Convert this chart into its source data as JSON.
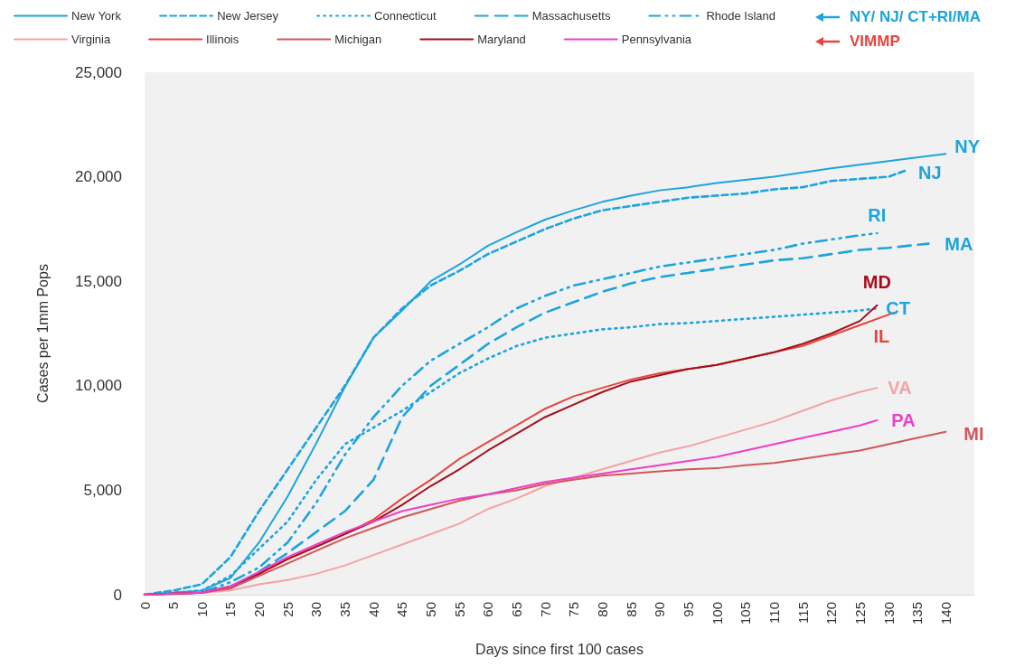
{
  "chart_data": {
    "type": "line",
    "xlabel": "Days since first 100 cases",
    "ylabel": "Cases per 1mm Pops",
    "xlim": [
      0,
      145
    ],
    "xticks": [
      0,
      5,
      10,
      15,
      20,
      25,
      30,
      35,
      40,
      45,
      50,
      55,
      60,
      65,
      70,
      75,
      80,
      85,
      90,
      95,
      100,
      105,
      110,
      115,
      120,
      125,
      130,
      135,
      140
    ],
    "ylim": [
      0,
      25000
    ],
    "yticks": [
      {
        "value": 0,
        "label": "0"
      },
      {
        "value": 5000,
        "label": "5,000"
      },
      {
        "value": 10000,
        "label": "10,000"
      },
      {
        "value": 15000,
        "label": "15,000"
      },
      {
        "value": 20000,
        "label": "20,000"
      },
      {
        "value": 25000,
        "label": "25,000"
      }
    ],
    "grid": false,
    "legend": "top",
    "series": [
      {
        "name": "New York",
        "color": "#1ca4de",
        "line_style": "solid",
        "x": [
          0,
          5,
          10,
          15,
          20,
          25,
          30,
          35,
          40,
          45,
          50,
          55,
          60,
          65,
          70,
          75,
          80,
          85,
          90,
          95,
          100,
          110,
          120,
          130,
          140
        ],
        "values": [
          0,
          100,
          200,
          800,
          2500,
          4700,
          7250,
          9950,
          12300,
          13600,
          15000,
          15800,
          16700,
          17350,
          17950,
          18400,
          18800,
          19100,
          19350,
          19500,
          19700,
          20000,
          20400,
          20750,
          21100
        ]
      },
      {
        "name": "New Jersey",
        "color": "#1ca4de",
        "line_style": "dashed",
        "x": [
          0,
          5,
          10,
          15,
          20,
          25,
          30,
          35,
          40,
          45,
          50,
          55,
          60,
          65,
          70,
          75,
          80,
          85,
          90,
          95,
          100,
          105,
          110,
          115,
          120,
          125,
          130,
          133
        ],
        "values": [
          0,
          200,
          500,
          1800,
          4000,
          6000,
          8000,
          10000,
          12300,
          13700,
          14800,
          15500,
          16300,
          16900,
          17500,
          18000,
          18400,
          18600,
          18800,
          19000,
          19100,
          19200,
          19400,
          19500,
          19800,
          19900,
          20000,
          20300
        ]
      },
      {
        "name": "Connecticut",
        "color": "#1ca4de",
        "line_style": "dotted",
        "x": [
          0,
          5,
          10,
          15,
          20,
          25,
          30,
          35,
          40,
          45,
          50,
          55,
          60,
          65,
          70,
          75,
          80,
          85,
          90,
          95,
          100,
          105,
          110,
          115,
          120,
          125,
          128
        ],
        "values": [
          0,
          100,
          200,
          900,
          2200,
          3500,
          5500,
          7200,
          8000,
          8800,
          9700,
          10600,
          11300,
          11900,
          12300,
          12500,
          12700,
          12800,
          12950,
          13000,
          13100,
          13200,
          13300,
          13400,
          13500,
          13600,
          13700
        ]
      },
      {
        "name": "Massachusetts",
        "color": "#1ca4de",
        "line_style": "longdash",
        "x": [
          0,
          5,
          10,
          15,
          20,
          25,
          30,
          35,
          40,
          45,
          50,
          55,
          60,
          65,
          70,
          75,
          80,
          85,
          90,
          95,
          100,
          105,
          110,
          115,
          120,
          125,
          130,
          137
        ],
        "values": [
          0,
          50,
          100,
          300,
          1100,
          2000,
          3000,
          4000,
          5500,
          8500,
          10000,
          11000,
          12000,
          12800,
          13500,
          14000,
          14500,
          14900,
          15200,
          15400,
          15600,
          15800,
          16000,
          16100,
          16300,
          16500,
          16600,
          16800
        ]
      },
      {
        "name": "Rhode Island",
        "color": "#1ca4de",
        "line_style": "dashdot",
        "x": [
          0,
          5,
          10,
          15,
          20,
          25,
          30,
          35,
          40,
          45,
          50,
          55,
          60,
          65,
          70,
          75,
          80,
          85,
          90,
          95,
          100,
          105,
          110,
          115,
          120,
          125,
          128
        ],
        "values": [
          0,
          50,
          100,
          600,
          1300,
          2500,
          4400,
          6700,
          8500,
          10000,
          11200,
          12000,
          12800,
          13700,
          14300,
          14800,
          15100,
          15400,
          15700,
          15900,
          16100,
          16300,
          16500,
          16800,
          17000,
          17200,
          17300
        ]
      },
      {
        "name": "Virginia",
        "color": "#f4a3a3",
        "line_style": "solid",
        "x": [
          0,
          5,
          10,
          15,
          20,
          25,
          30,
          35,
          40,
          45,
          50,
          55,
          60,
          65,
          70,
          75,
          80,
          85,
          90,
          95,
          100,
          105,
          110,
          115,
          120,
          125,
          128
        ],
        "values": [
          0,
          50,
          100,
          200,
          500,
          700,
          1000,
          1400,
          1900,
          2400,
          2900,
          3400,
          4100,
          4600,
          5200,
          5600,
          6000,
          6400,
          6800,
          7100,
          7500,
          7900,
          8300,
          8800,
          9300,
          9700,
          9900
        ]
      },
      {
        "name": "Illinois",
        "color": "#e8443e",
        "line_style": "solid",
        "x": [
          0,
          5,
          10,
          15,
          20,
          25,
          30,
          35,
          40,
          45,
          50,
          55,
          60,
          65,
          70,
          75,
          80,
          85,
          90,
          95,
          100,
          105,
          110,
          115,
          120,
          125,
          131
        ],
        "values": [
          0,
          50,
          100,
          400,
          1000,
          1700,
          2300,
          2900,
          3600,
          4600,
          5500,
          6500,
          7300,
          8100,
          8900,
          9500,
          9900,
          10300,
          10600,
          10800,
          11000,
          11300,
          11600,
          11900,
          12400,
          12900,
          13500
        ]
      },
      {
        "name": "Michigan",
        "color": "#d0575a",
        "line_style": "solid",
        "x": [
          0,
          5,
          10,
          15,
          20,
          25,
          30,
          35,
          40,
          45,
          50,
          55,
          60,
          65,
          70,
          75,
          80,
          85,
          90,
          95,
          100,
          105,
          110,
          115,
          120,
          125,
          130,
          135,
          140
        ],
        "values": [
          0,
          50,
          100,
          300,
          900,
          1500,
          2100,
          2700,
          3200,
          3700,
          4100,
          4500,
          4800,
          5000,
          5300,
          5500,
          5700,
          5800,
          5900,
          6000,
          6050,
          6200,
          6300,
          6500,
          6700,
          6900,
          7200,
          7500,
          7800
        ]
      },
      {
        "name": "Maryland",
        "color": "#a50f1c",
        "line_style": "solid",
        "x": [
          0,
          5,
          10,
          15,
          20,
          25,
          30,
          35,
          40,
          45,
          50,
          55,
          60,
          65,
          70,
          75,
          80,
          85,
          90,
          95,
          100,
          105,
          110,
          115,
          120,
          125,
          128
        ],
        "values": [
          0,
          50,
          100,
          400,
          1000,
          1700,
          2300,
          2900,
          3500,
          4300,
          5200,
          6000,
          6900,
          7700,
          8500,
          9100,
          9700,
          10200,
          10500,
          10800,
          11000,
          11300,
          11600,
          12000,
          12500,
          13100,
          13850
        ]
      },
      {
        "name": "Pennsylvania",
        "color": "#ee3fc8",
        "line_style": "solid",
        "x": [
          0,
          5,
          10,
          15,
          20,
          25,
          30,
          35,
          40,
          45,
          50,
          55,
          60,
          65,
          70,
          75,
          80,
          85,
          90,
          95,
          100,
          105,
          110,
          115,
          120,
          125,
          128
        ],
        "values": [
          0,
          50,
          100,
          400,
          1100,
          1800,
          2400,
          3000,
          3500,
          4000,
          4300,
          4600,
          4800,
          5100,
          5400,
          5600,
          5800,
          6000,
          6200,
          6400,
          6600,
          6900,
          7200,
          7500,
          7800,
          8100,
          8350
        ]
      }
    ],
    "annotations": [
      "NY",
      "NJ",
      "CT",
      "MA",
      "RI",
      "VA",
      "IL",
      "MI",
      "MD",
      "PA",
      "NY/ NJ/ CT+RI/MA",
      "VIMMP"
    ]
  }
}
